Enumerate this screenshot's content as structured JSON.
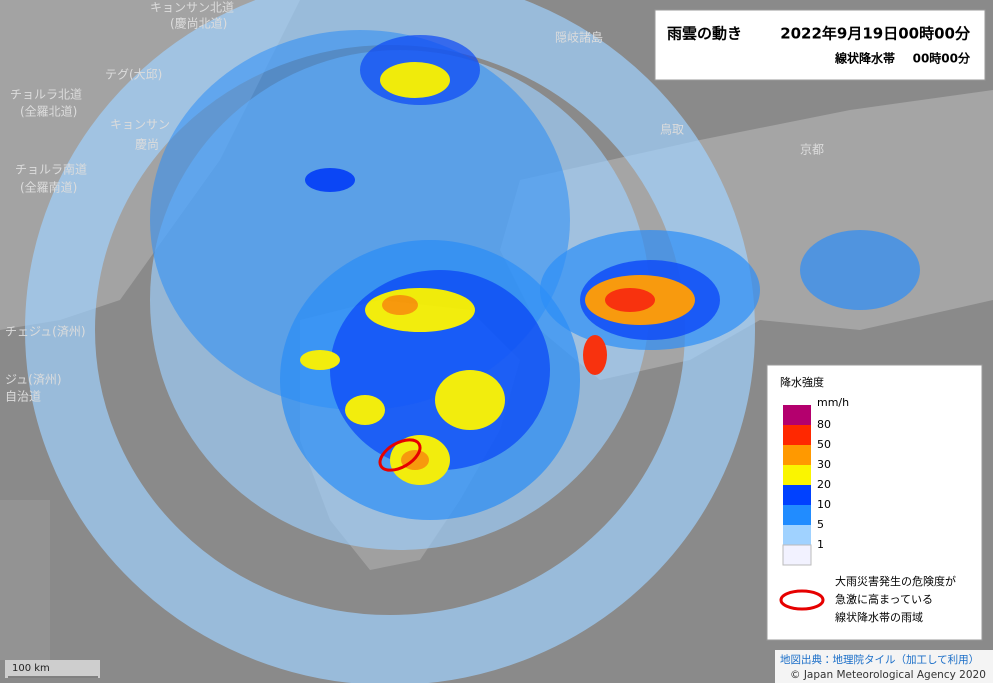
{
  "header": {
    "title": "雨雲の動き",
    "datetime": "2022年9月19日00時00分",
    "subtitle": "線状降水帯",
    "subtitle_time": "00時00分"
  },
  "legend": {
    "title": "降水強度",
    "unit": "mm/h",
    "colors": [
      "#b4006e",
      "#ff2800",
      "#ff9900",
      "#faf500",
      "#0041ff",
      "#218cff",
      "#a0d2ff",
      "#f2f2ff"
    ],
    "ticks": [
      "80",
      "50",
      "30",
      "20",
      "10",
      "5",
      "1"
    ],
    "note": [
      "大雨災害発生の危険度が",
      "急激に高まっている",
      "線状降水帯の雨域"
    ]
  },
  "scale": "100 km",
  "attribution": {
    "source": "地図出典：地理院タイル（加工して利用）",
    "copyright": "© Japan Meteorological Agency 2020"
  },
  "map_labels": [
    "キョンサン北道",
    "(慶尚北道)",
    "チョルラ北道",
    "(全羅北道)",
    "キョンサン",
    "慶尚",
    "チョルラ南道",
    "(全羅南道)",
    "テグ(大邱)",
    "チェジュ(済州)",
    "ジュ(済州)",
    "自治道",
    "隠岐諸島",
    "鳥取",
    "京都"
  ]
}
